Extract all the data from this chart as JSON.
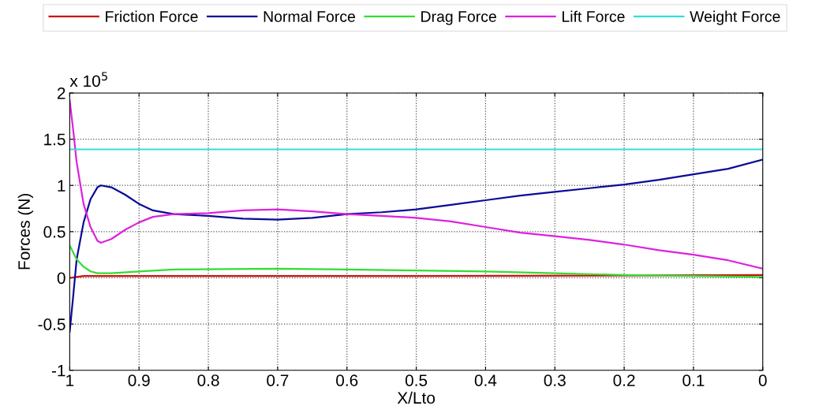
{
  "chart_data": {
    "type": "line",
    "xlabel": "X/Lto",
    "ylabel": "Forces (N)",
    "annotations": [
      "x 10$^{5}$"
    ],
    "xlim": [
      1,
      0
    ],
    "xticks": [
      1,
      0.9,
      0.8,
      0.7,
      0.6,
      0.5,
      0.4,
      0.3,
      0.2,
      0.1,
      0
    ],
    "ylim": [
      -1,
      2
    ],
    "yticks": [
      -1,
      -0.5,
      0,
      0.5,
      1,
      1.5,
      2
    ],
    "grid": true,
    "legend": "top",
    "line_style": "solid",
    "series": [
      {
        "name": "Friction Force",
        "color": "#cc1111",
        "x": [
          1,
          0.98,
          0.5,
          0
        ],
        "values": [
          0,
          0.02,
          0.02,
          0.03
        ]
      },
      {
        "name": "Normal Force",
        "color": "#0a0a9a",
        "x": [
          1,
          0.995,
          0.99,
          0.98,
          0.97,
          0.96,
          0.955,
          0.94,
          0.92,
          0.9,
          0.88,
          0.85,
          0.8,
          0.75,
          0.7,
          0.65,
          0.6,
          0.55,
          0.5,
          0.45,
          0.4,
          0.35,
          0.3,
          0.25,
          0.2,
          0.15,
          0.1,
          0.05,
          0
        ],
        "values": [
          -0.58,
          -0.2,
          0.2,
          0.6,
          0.85,
          0.98,
          1.0,
          0.98,
          0.9,
          0.8,
          0.73,
          0.69,
          0.67,
          0.64,
          0.63,
          0.65,
          0.69,
          0.71,
          0.74,
          0.79,
          0.84,
          0.89,
          0.93,
          0.97,
          1.01,
          1.06,
          1.12,
          1.18,
          1.28
        ]
      },
      {
        "name": "Drag Force",
        "color": "#33dd33",
        "x": [
          1,
          0.99,
          0.98,
          0.97,
          0.96,
          0.94,
          0.9,
          0.85,
          0.7,
          0.6,
          0.5,
          0.4,
          0.3,
          0.2,
          0.1,
          0
        ],
        "values": [
          0.35,
          0.2,
          0.12,
          0.07,
          0.05,
          0.05,
          0.07,
          0.09,
          0.1,
          0.09,
          0.08,
          0.07,
          0.05,
          0.03,
          0.02,
          0.01
        ]
      },
      {
        "name": "Lift Force",
        "color": "#dd22dd",
        "x": [
          1,
          0.995,
          0.99,
          0.98,
          0.97,
          0.96,
          0.955,
          0.94,
          0.92,
          0.9,
          0.88,
          0.85,
          0.8,
          0.75,
          0.7,
          0.65,
          0.6,
          0.55,
          0.5,
          0.45,
          0.4,
          0.35,
          0.3,
          0.25,
          0.2,
          0.15,
          0.1,
          0.05,
          0
        ],
        "values": [
          1.92,
          1.6,
          1.25,
          0.8,
          0.55,
          0.4,
          0.38,
          0.42,
          0.52,
          0.6,
          0.66,
          0.69,
          0.7,
          0.73,
          0.74,
          0.72,
          0.69,
          0.67,
          0.65,
          0.61,
          0.55,
          0.49,
          0.45,
          0.41,
          0.36,
          0.3,
          0.25,
          0.19,
          0.1
        ]
      },
      {
        "name": "Weight Force",
        "color": "#33dddd",
        "x": [
          1,
          0
        ],
        "values": [
          1.39,
          1.39
        ]
      }
    ]
  }
}
